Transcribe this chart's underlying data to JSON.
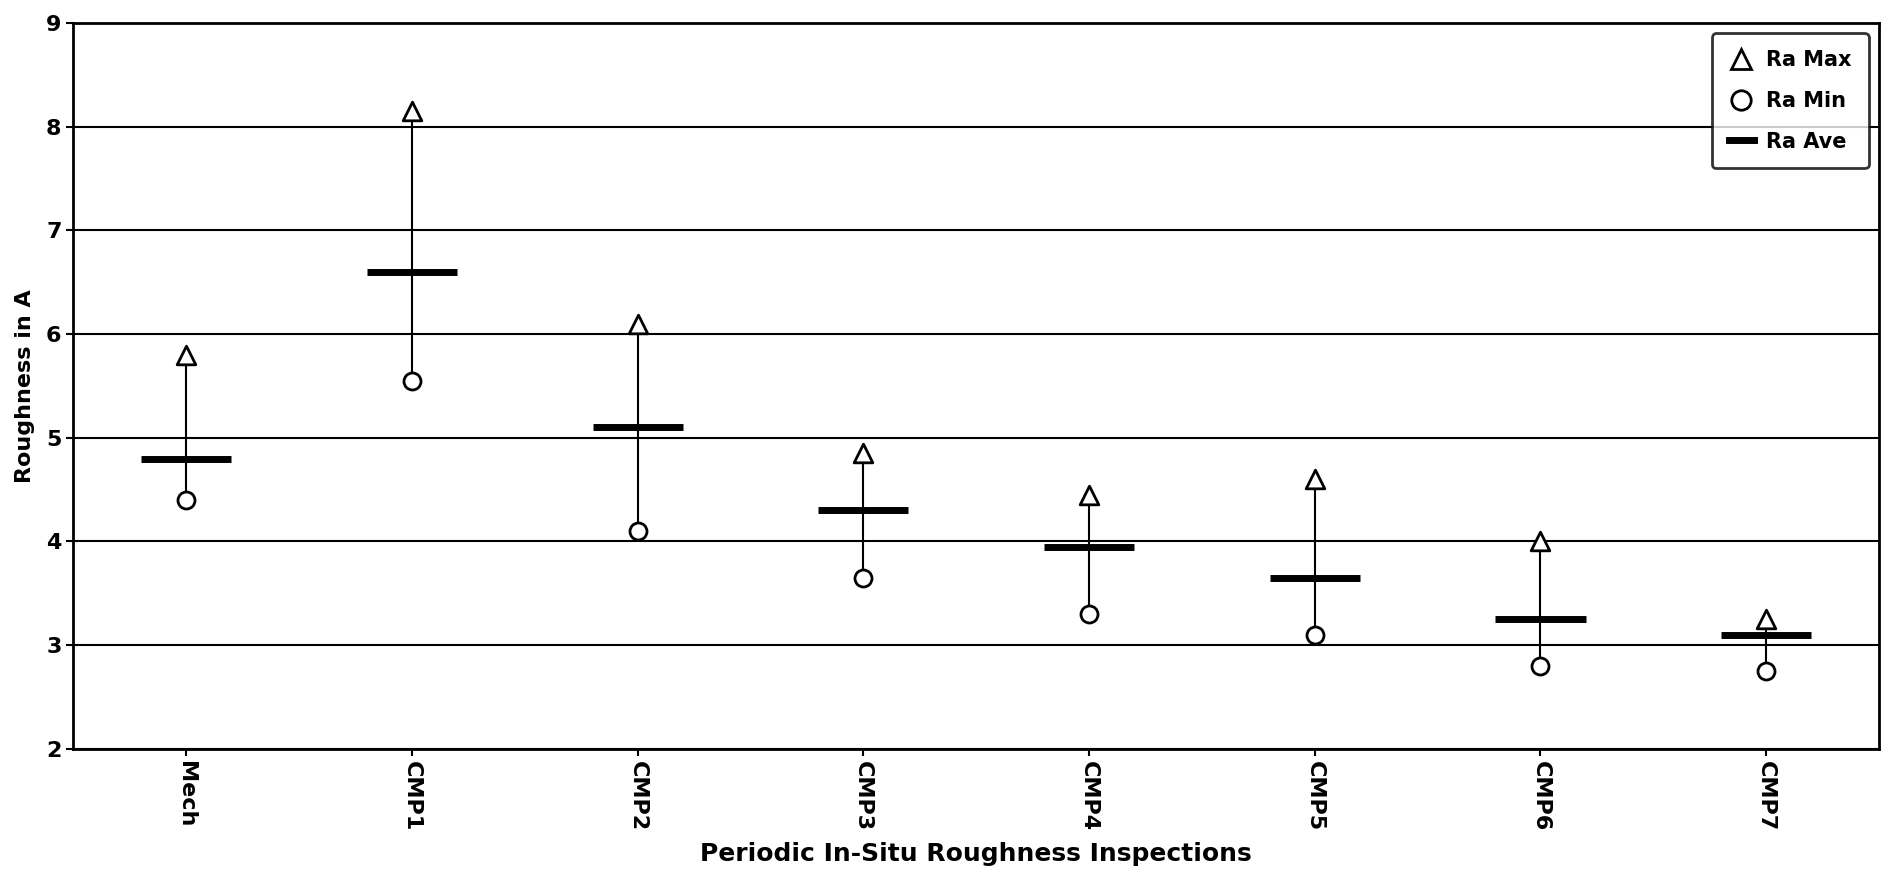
{
  "categories": [
    "Mech",
    "CMP1",
    "CMP2",
    "CMP3",
    "CMP4",
    "CMP5",
    "CMP6",
    "CMP7"
  ],
  "ra_max": [
    5.8,
    8.15,
    6.1,
    4.85,
    4.45,
    4.6,
    4.0,
    3.25
  ],
  "ra_min": [
    4.4,
    5.55,
    4.1,
    3.65,
    3.3,
    3.1,
    2.8,
    2.75
  ],
  "ra_ave": [
    4.8,
    6.6,
    5.1,
    4.3,
    3.95,
    3.65,
    3.25,
    3.1
  ],
  "xlabel": "Periodic In-Situ Roughness Inspections",
  "ylabel": "Roughness in A",
  "ylim": [
    2,
    9
  ],
  "yticks": [
    2,
    3,
    4,
    5,
    6,
    7,
    8,
    9
  ],
  "background_color": "#ffffff",
  "marker_color": "#000000",
  "ave_color": "#000000",
  "line_color": "#000000",
  "grid_color": "#000000"
}
